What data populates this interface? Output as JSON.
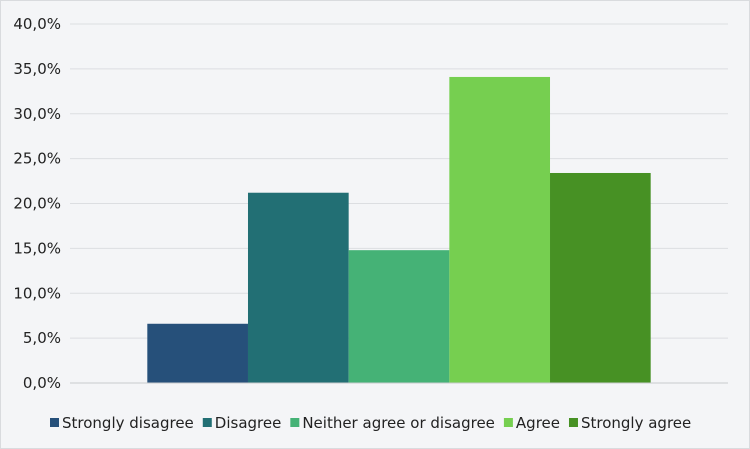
{
  "chart_data": {
    "type": "bar",
    "title": "",
    "xlabel": "",
    "ylabel": "",
    "ylim": [
      0,
      40
    ],
    "y_ticks": [
      "0,0%",
      "5,0%",
      "10,0%",
      "15,0%",
      "20,0%",
      "25,0%",
      "30,0%",
      "35,0%",
      "40,0%"
    ],
    "grid": true,
    "legend_position": "bottom",
    "categories": [
      ""
    ],
    "series": [
      {
        "name": "Strongly disagree",
        "values": [
          6.6
        ],
        "color": "#26507a"
      },
      {
        "name": "Disagree",
        "values": [
          21.2
        ],
        "color": "#226f74"
      },
      {
        "name": "Neither agree or disagree",
        "values": [
          14.8
        ],
        "color": "#45b276"
      },
      {
        "name": "Agree",
        "values": [
          34.1
        ],
        "color": "#76cf50"
      },
      {
        "name": "Strongly agree",
        "values": [
          23.4
        ],
        "color": "#479124"
      }
    ]
  }
}
